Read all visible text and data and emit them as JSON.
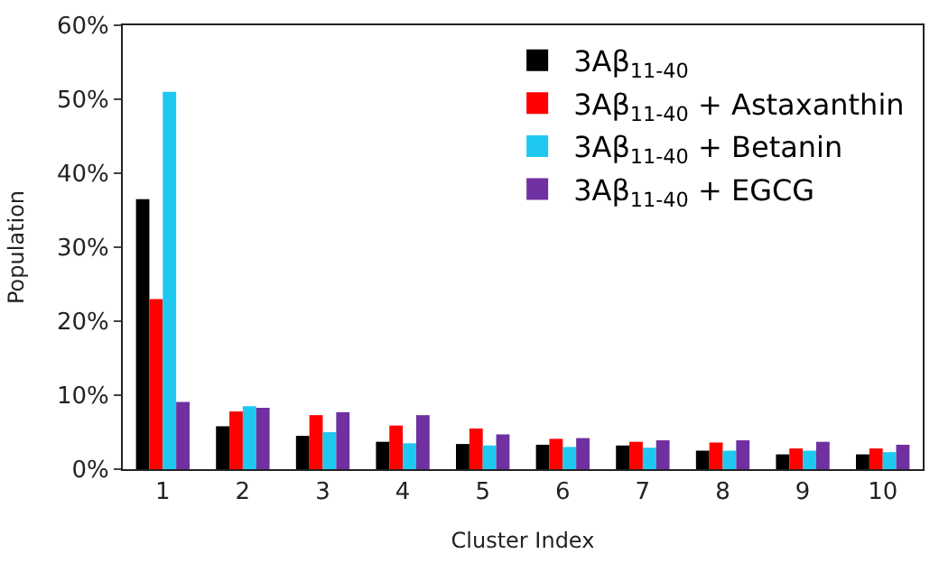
{
  "chart_data": {
    "type": "bar",
    "xlabel": "Cluster Index",
    "ylabel": "Population",
    "categories": [
      "1",
      "2",
      "3",
      "4",
      "5",
      "6",
      "7",
      "8",
      "9",
      "10"
    ],
    "series": [
      {
        "name": "3Aβ$_{11-40}$",
        "color": "#000000",
        "values": [
          36.5,
          5.8,
          4.5,
          3.7,
          3.4,
          3.3,
          3.2,
          2.5,
          2.0,
          2.0
        ]
      },
      {
        "name": "3Aβ$_{11-40}$ + Astaxanthin",
        "color": "#ff0000",
        "values": [
          23.0,
          7.8,
          7.3,
          5.9,
          5.5,
          4.1,
          3.7,
          3.6,
          2.8,
          2.8
        ]
      },
      {
        "name": "3Aβ$_{11-40}$ + Betanin",
        "color": "#1ec8f0",
        "values": [
          51.0,
          8.5,
          5.0,
          3.5,
          3.2,
          3.0,
          2.9,
          2.5,
          2.5,
          2.3
        ]
      },
      {
        "name": "3Aβ$_{11-40}$ + EGCG",
        "color": "#7030a0",
        "values": [
          9.1,
          8.3,
          7.7,
          7.3,
          4.7,
          4.2,
          3.9,
          3.9,
          3.7,
          3.3
        ]
      }
    ],
    "ylim": [
      0,
      60
    ],
    "yticks": [
      {
        "value": 0,
        "label": "0%"
      },
      {
        "value": 10,
        "label": "10%"
      },
      {
        "value": 20,
        "label": "20%"
      },
      {
        "value": 30,
        "label": "30%"
      },
      {
        "value": 40,
        "label": "40%"
      },
      {
        "value": 50,
        "label": "50%"
      },
      {
        "value": 60,
        "label": "60%"
      }
    ],
    "legend": "top right"
  }
}
